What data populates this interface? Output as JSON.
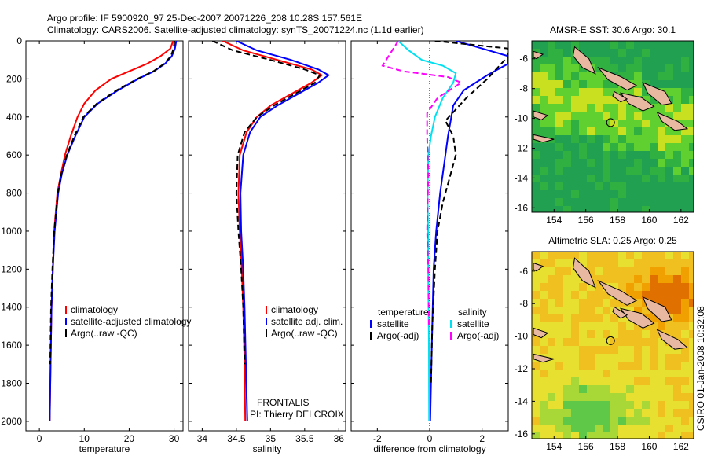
{
  "header": {
    "title_line1": "Argo profile: IF 5900920_97 25-Dec-2007 20071226_208 10.28S 157.561E",
    "title_line2": "Climatology: CARS2006. Satellite-adjusted climatology: synTS_20071224.nc (1.1d earlier)"
  },
  "side_label": "CSIRO 01-Jan-2008 10:32:08",
  "colors": {
    "climatology": "#ff0000",
    "satellite": "#0000ff",
    "argo": "#000000",
    "sat_salinity": "#00e0f0",
    "argo_salinity": "#ff00ff"
  },
  "chart_data": [
    {
      "type": "line",
      "xlabel": "temperature",
      "ylabel": "",
      "xlim": [
        -3,
        32
      ],
      "ylim": [
        2050,
        0
      ],
      "xticks": [
        "0",
        "10",
        "20",
        "30"
      ],
      "yticks": [
        "0",
        "200",
        "400",
        "600",
        "800",
        "1000",
        "1200",
        "1400",
        "1600",
        "1800",
        "2000"
      ],
      "legend": [
        "climatology",
        "satellite-adjusted climatology",
        "Argo(..raw -QC)"
      ],
      "series": [
        {
          "name": "climatology",
          "color": "climatology",
          "dash": false,
          "x": [
            29.8,
            29.2,
            27,
            24,
            20,
            16,
            12.5,
            10,
            8.5,
            7,
            5.7,
            4.8,
            4,
            3.3,
            3,
            2.7,
            2.5,
            2.3
          ],
          "y": [
            0,
            40,
            80,
            120,
            160,
            200,
            260,
            330,
            400,
            500,
            600,
            700,
            800,
            1000,
            1200,
            1400,
            1700,
            2000
          ]
        },
        {
          "name": "satellite-adjusted climatology",
          "color": "satellite",
          "dash": false,
          "x": [
            30.5,
            30.2,
            29.5,
            28,
            25.5,
            22,
            17.5,
            13,
            10,
            8,
            6.2,
            5,
            4.2,
            3.4,
            3,
            2.7,
            2.5,
            2.3
          ],
          "y": [
            0,
            40,
            80,
            120,
            160,
            200,
            260,
            330,
            400,
            500,
            600,
            700,
            800,
            1000,
            1200,
            1400,
            1700,
            2000
          ]
        },
        {
          "name": "Argo(..raw -QC)",
          "color": "argo",
          "dash": true,
          "x": [
            30.1,
            29.9,
            29.3,
            27.8,
            25.4,
            21.8,
            17.2,
            12.8,
            9.8,
            7.8,
            6.1,
            4.9,
            4.1,
            3.3,
            2.9,
            2.6,
            2.4
          ],
          "y": [
            0,
            40,
            80,
            120,
            160,
            200,
            260,
            330,
            400,
            500,
            600,
            700,
            800,
            1000,
            1200,
            1400,
            1700
          ]
        }
      ]
    },
    {
      "type": "line",
      "xlabel": "salinity",
      "ylabel": "",
      "xlim": [
        33.8,
        36.1
      ],
      "ylim": [
        2050,
        0
      ],
      "xticks": [
        "34",
        "34.5",
        "35",
        "35.5",
        "36"
      ],
      "legend": [
        "climatology",
        "satellite adj. clim.",
        "Argo(..raw -QC)"
      ],
      "annotation": [
        "FRONTALIS",
        "PI: Thierry DELCROIX"
      ],
      "series": [
        {
          "name": "climatology",
          "color": "climatology",
          "dash": false,
          "x": [
            34.3,
            34.6,
            35.1,
            35.6,
            35.75,
            35.6,
            35.3,
            35,
            34.8,
            34.65,
            34.55,
            34.53,
            34.55,
            34.58,
            34.6,
            34.62,
            34.63
          ],
          "y": [
            0,
            50,
            100,
            150,
            180,
            220,
            280,
            340,
            400,
            480,
            600,
            800,
            1000,
            1200,
            1400,
            1700,
            2000
          ]
        },
        {
          "name": "satellite adj. clim.",
          "color": "satellite",
          "dash": false,
          "x": [
            34.5,
            34.8,
            35.3,
            35.7,
            35.85,
            35.7,
            35.4,
            35.1,
            34.85,
            34.7,
            34.6,
            34.56,
            34.57,
            34.6,
            34.62,
            34.64,
            34.66
          ],
          "y": [
            0,
            50,
            100,
            150,
            180,
            220,
            280,
            340,
            400,
            480,
            600,
            800,
            1000,
            1200,
            1400,
            1700,
            2000
          ]
        },
        {
          "name": "Argo(..raw -QC)",
          "color": "argo",
          "dash": true,
          "x": [
            34.15,
            34.45,
            35.0,
            35.5,
            35.72,
            35.65,
            35.35,
            35.05,
            34.8,
            34.62,
            34.52,
            34.5,
            34.53,
            34.57,
            34.6,
            34.62
          ],
          "y": [
            0,
            50,
            100,
            150,
            180,
            220,
            280,
            340,
            400,
            480,
            600,
            800,
            1000,
            1200,
            1400,
            1700
          ]
        }
      ]
    },
    {
      "type": "line",
      "xlabel": "difference from climatology",
      "ylabel": "",
      "xlim": [
        -3,
        3
      ],
      "ylim": [
        2050,
        0
      ],
      "xticks": [
        "-2",
        "0",
        "2"
      ],
      "legend": [
        "temperature",
        "satellite",
        "Argo(-adj)",
        "salinity",
        "satellite",
        "Argo(-adj)"
      ],
      "series": [
        {
          "name": "satellite",
          "color": "satellite",
          "dash": false,
          "x": [
            1.0,
            2.0,
            3.0,
            3.0,
            2.2,
            1.3,
            0.9,
            0.8,
            0.7,
            0.6,
            0.4,
            0.25,
            0.15,
            0.1,
            0.05,
            0.02
          ],
          "y": [
            0,
            40,
            80,
            120,
            180,
            260,
            340,
            420,
            500,
            600,
            800,
            1000,
            1200,
            1500,
            1800,
            2000
          ]
        },
        {
          "name": "Argo(-adj)",
          "color": "argo",
          "dash": true,
          "x": [
            0.2,
            3.0,
            3.0,
            2.2,
            1.4,
            0.6,
            0.9,
            1.0,
            0.8,
            0.5,
            0.3,
            0.2,
            0.1,
            0.05
          ],
          "y": [
            0,
            40,
            80,
            200,
            300,
            420,
            500,
            600,
            700,
            850,
            1000,
            1200,
            1500,
            1800
          ]
        },
        {
          "name": "satellite",
          "color": "sat_salinity",
          "dash": false,
          "x": [
            -1.2,
            -0.8,
            -0.3,
            0.5,
            1.0,
            0.9,
            0.5,
            0.2,
            0.05,
            -0.05,
            -0.08,
            -0.06,
            -0.05,
            -0.03,
            -0.02
          ],
          "y": [
            0,
            50,
            100,
            130,
            170,
            220,
            300,
            400,
            500,
            600,
            800,
            1000,
            1300,
            1600,
            2000
          ]
        },
        {
          "name": "Argo(-adj)",
          "color": "argo_salinity",
          "dash": true,
          "x": [
            -1.2,
            -1.8,
            -1.0,
            0.7,
            1.2,
            0.3,
            -0.1,
            -0.1,
            -0.05,
            -0.1,
            -0.05,
            -0.03
          ],
          "y": [
            0,
            130,
            160,
            190,
            220,
            300,
            380,
            500,
            700,
            1000,
            1200,
            1500
          ]
        }
      ]
    },
    {
      "type": "heatmap",
      "title": "AMSR-E SST: 30.6 Argo: 30.1",
      "xlim": [
        152.6,
        162.8
      ],
      "ylim": [
        -16.3,
        -4.8
      ],
      "xticks": [
        "154",
        "156",
        "158",
        "160",
        "162"
      ],
      "yticks": [
        "-6",
        "-8",
        "-10",
        "-12",
        "-14",
        "-16"
      ],
      "marker": {
        "lon": 157.56,
        "lat": -10.28
      }
    },
    {
      "type": "heatmap",
      "title": "Altimetric SLA: 0.25 Argo: 0.25",
      "xlim": [
        152.6,
        162.8
      ],
      "ylim": [
        -16.3,
        -4.8
      ],
      "xticks": [
        "154",
        "156",
        "158",
        "160",
        "162"
      ],
      "yticks": [
        "-6",
        "-8",
        "-10",
        "-12",
        "-14",
        "-16"
      ],
      "marker": {
        "lon": 157.56,
        "lat": -10.28
      }
    }
  ]
}
